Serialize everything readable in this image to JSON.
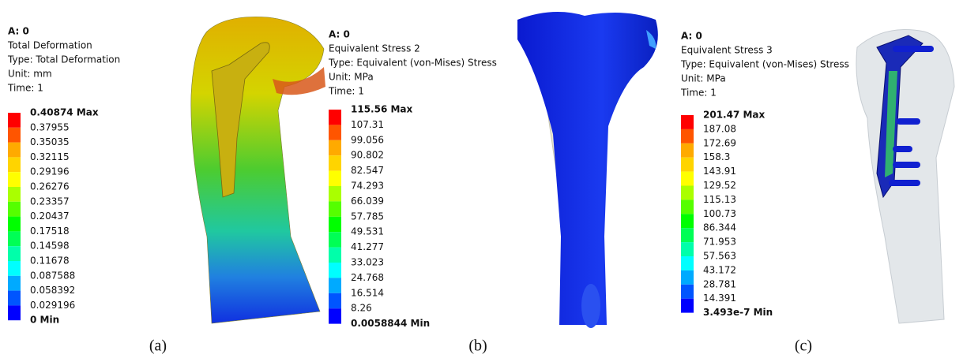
{
  "panels": [
    {
      "header": "A: 0",
      "lines": [
        "Total Deformation",
        "Type: Total Deformation",
        "Unit: mm",
        "Time: 1"
      ],
      "legend": [
        "0.40874 Max",
        "0.37955",
        "0.35035",
        "0.32115",
        "0.29196",
        "0.26276",
        "0.23357",
        "0.20437",
        "0.17518",
        "0.14598",
        "0.11678",
        "0.087588",
        "0.058392",
        "0.029196",
        "0 Min"
      ],
      "caption": "(a)"
    },
    {
      "header": "A: 0",
      "lines": [
        "Equivalent Stress 2",
        "Type: Equivalent (von-Mises) Stress",
        "Unit: MPa",
        "Time: 1"
      ],
      "legend": [
        "115.56 Max",
        "107.31",
        "99.056",
        "90.802",
        "82.547",
        "74.293",
        "66.039",
        "57.785",
        "49.531",
        "41.277",
        "33.023",
        "24.768",
        "16.514",
        "8.26",
        "0.0058844 Min"
      ],
      "caption": "(b)"
    },
    {
      "header": "A: 0",
      "lines": [
        "Equivalent Stress 3",
        "Type: Equivalent (von-Mises) Stress",
        "Unit: MPa",
        "Time: 1"
      ],
      "legend": [
        "201.47 Max",
        "187.08",
        "172.69",
        "158.3",
        "143.91",
        "129.52",
        "115.13",
        "100.73",
        "86.344",
        "71.953",
        "57.563",
        "43.172",
        "28.781",
        "14.391",
        "3.493e-7 Min"
      ],
      "caption": "(c)"
    }
  ]
}
